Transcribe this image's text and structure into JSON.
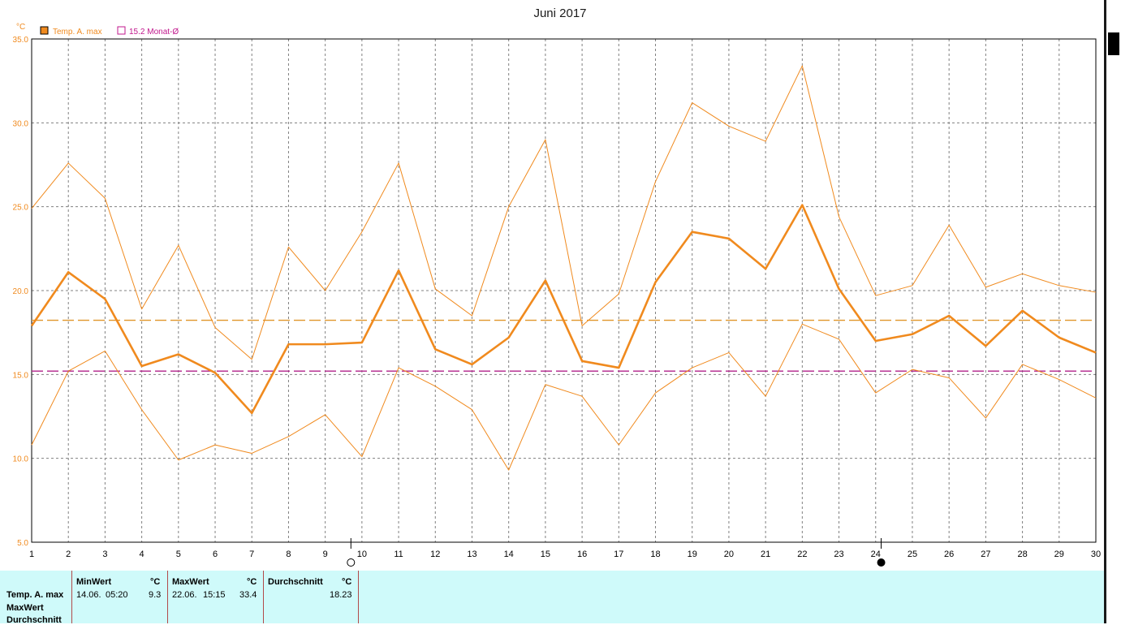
{
  "title": "Juni 2017",
  "unit_label": "°C",
  "legend": [
    {
      "label": "Temp. A. max",
      "color": "#f08a1e",
      "filled": true
    },
    {
      "label": "15.2 Monat-Ø",
      "color": "#c0178c",
      "filled": false
    }
  ],
  "colors": {
    "series": "#f08a1e",
    "avg_line": "#e0962a",
    "month_line": "#b0208a",
    "grid": "#808080"
  },
  "chart_data": {
    "type": "line",
    "title": "Juni 2017",
    "ylabel": "°C",
    "ylim": [
      5,
      35
    ],
    "xlim": [
      1,
      30
    ],
    "yticks": [
      "5.0",
      "10.0",
      "15.0",
      "20.0",
      "25.0",
      "30.0",
      "35.0"
    ],
    "yticks_values": [
      5,
      10,
      15,
      20,
      25,
      30,
      35
    ],
    "x": [
      1,
      2,
      3,
      4,
      5,
      6,
      7,
      8,
      9,
      10,
      11,
      12,
      13,
      14,
      15,
      16,
      17,
      18,
      19,
      20,
      21,
      22,
      23,
      24,
      25,
      26,
      27,
      28,
      29,
      30
    ],
    "series": [
      {
        "name": "Temp. A. max",
        "role": "upper",
        "values": [
          24.9,
          27.6,
          25.5,
          18.9,
          22.7,
          17.8,
          15.9,
          22.6,
          20.0,
          23.5,
          27.6,
          20.1,
          18.5,
          25.0,
          29.0,
          17.9,
          19.8,
          26.5,
          31.2,
          29.8,
          28.9,
          33.4,
          24.4,
          19.7,
          20.3,
          23.9,
          20.2,
          21.0,
          20.3,
          19.9
        ]
      },
      {
        "name": "Temp. A. max",
        "role": "mean",
        "values": [
          17.9,
          21.1,
          19.5,
          15.5,
          16.2,
          15.1,
          12.7,
          16.8,
          16.8,
          16.9,
          21.2,
          16.5,
          15.6,
          17.2,
          20.6,
          15.8,
          15.4,
          20.5,
          23.5,
          23.1,
          21.3,
          25.1,
          20.1,
          17.0,
          17.4,
          18.5,
          16.7,
          18.8,
          17.2,
          16.3
        ]
      },
      {
        "name": "Temp. A. max",
        "role": "lower",
        "values": [
          10.8,
          15.2,
          16.4,
          12.9,
          9.9,
          10.8,
          10.3,
          11.3,
          12.6,
          10.1,
          15.4,
          14.3,
          12.9,
          9.3,
          14.4,
          13.7,
          10.8,
          13.9,
          15.4,
          16.3,
          13.7,
          18.0,
          17.1,
          13.9,
          15.3,
          14.8,
          12.4,
          15.6,
          14.7,
          13.6
        ]
      }
    ],
    "reference_lines": [
      {
        "value": 18.23,
        "color": "#e0962a"
      },
      {
        "value": 15.2,
        "name": "15.2 Monat-Ø",
        "color": "#b0208a"
      }
    ],
    "moon_phases": [
      {
        "day": 9.7,
        "phase": "full"
      },
      {
        "day": 24.15,
        "phase": "new"
      }
    ],
    "grid": true
  },
  "stats": {
    "row_labels": [
      "Temp. A. max",
      "MaxWert",
      "Durchschnitt"
    ],
    "min": {
      "header": "MinWert",
      "unit": "°C",
      "date": "14.06.",
      "time": "05:20",
      "value": "9.3"
    },
    "max": {
      "header": "MaxWert",
      "unit": "°C",
      "date": "22.06.",
      "time": "15:15",
      "value": "33.4"
    },
    "avg": {
      "header": "Durchschnitt",
      "unit": "°C",
      "value": "18.23"
    }
  }
}
